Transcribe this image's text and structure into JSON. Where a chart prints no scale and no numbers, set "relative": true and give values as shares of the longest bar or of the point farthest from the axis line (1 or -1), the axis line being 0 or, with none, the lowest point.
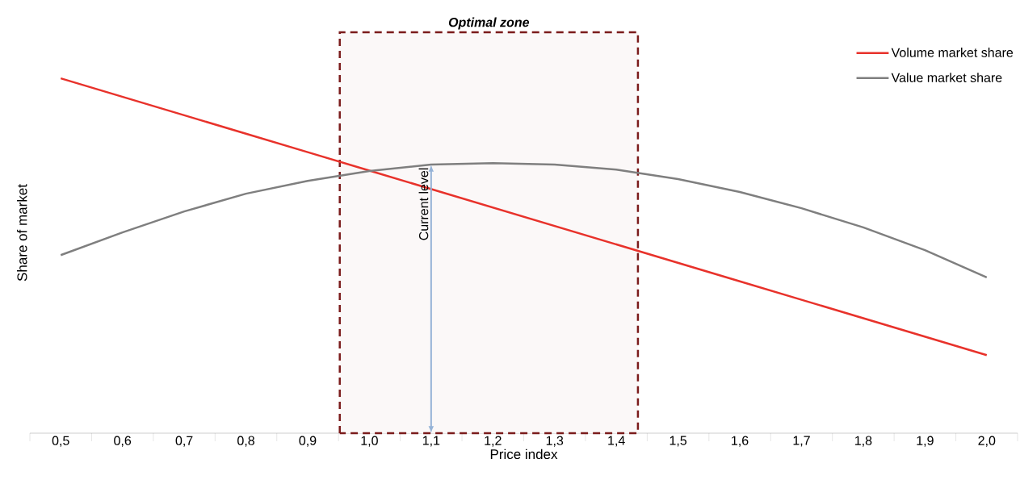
{
  "chart_data": {
    "type": "line",
    "relative": true,
    "xlabel": "Price index",
    "ylabel": "Share of market",
    "x": [
      0.5,
      0.6,
      0.7,
      0.8,
      0.9,
      1.0,
      1.1,
      1.2,
      1.3,
      1.4,
      1.5,
      1.6,
      1.7,
      1.8,
      1.9,
      2.0
    ],
    "xlim": [
      0.45,
      2.05
    ],
    "xticks": [
      {
        "value": 0.5,
        "label": "0,5"
      },
      {
        "value": 0.6,
        "label": "0,6"
      },
      {
        "value": 0.7,
        "label": "0,7"
      },
      {
        "value": 0.8,
        "label": "0,8"
      },
      {
        "value": 0.9,
        "label": "0,9"
      },
      {
        "value": 1.0,
        "label": "1,0"
      },
      {
        "value": 1.1,
        "label": "1,1"
      },
      {
        "value": 1.2,
        "label": "1,2"
      },
      {
        "value": 1.3,
        "label": "1,3"
      },
      {
        "value": 1.4,
        "label": "1,4"
      },
      {
        "value": 1.5,
        "label": "1,5"
      },
      {
        "value": 1.6,
        "label": "1,6"
      },
      {
        "value": 1.7,
        "label": "1,7"
      },
      {
        "value": 1.8,
        "label": "1,8"
      },
      {
        "value": 1.9,
        "label": "1,9"
      },
      {
        "value": 2.0,
        "label": "2,0"
      }
    ],
    "series": [
      {
        "name": "Volume market share",
        "color": "#e8322b",
        "values": [
          1.0,
          0.948,
          0.896,
          0.844,
          0.792,
          0.74,
          0.688,
          0.636,
          0.584,
          0.532,
          0.48,
          0.428,
          0.376,
          0.324,
          0.272,
          0.22
        ]
      },
      {
        "name": "Value market share",
        "color": "#7f7f7f",
        "values": [
          0.502,
          0.566,
          0.625,
          0.675,
          0.711,
          0.739,
          0.757,
          0.761,
          0.757,
          0.743,
          0.716,
          0.68,
          0.634,
          0.58,
          0.516,
          0.439
        ]
      }
    ],
    "bands": [
      {
        "axis": "x",
        "from": 0.952,
        "to": 1.435,
        "label": "Optimal zone",
        "color": "#7b1c1c"
      }
    ],
    "annotations": [
      {
        "text": "Current level",
        "x": 1.1,
        "y": 0.757
      }
    ],
    "legend": "top right",
    "marker": "none",
    "line_style": "solid",
    "grid": false
  }
}
